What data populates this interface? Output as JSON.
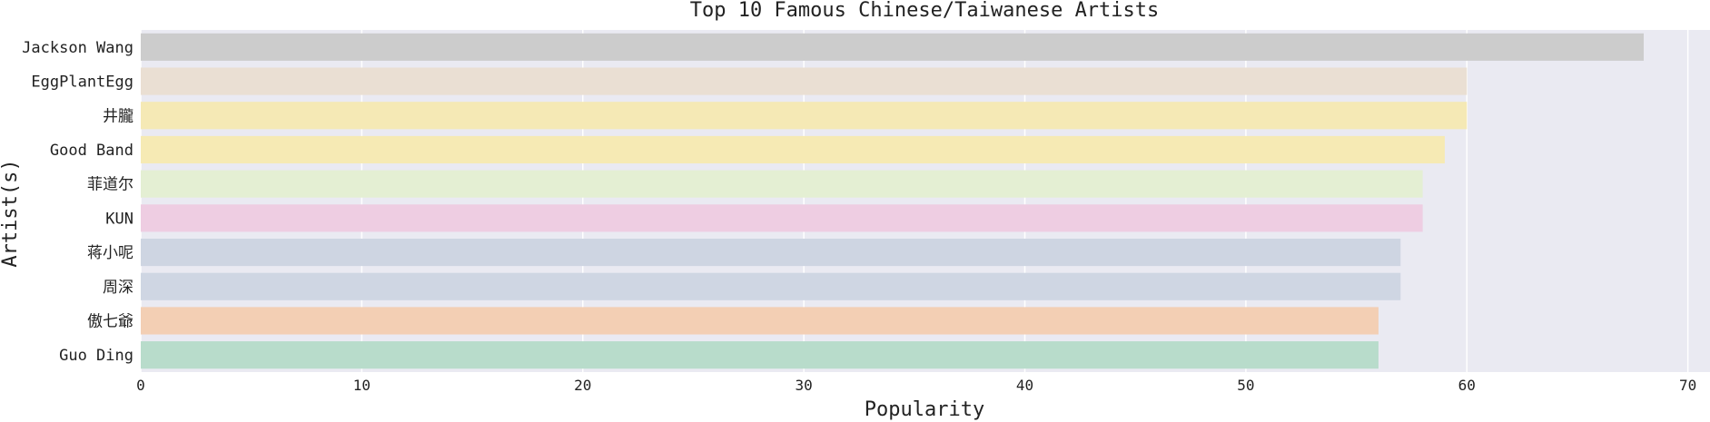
{
  "chart_data": {
    "type": "bar",
    "orientation": "horizontal",
    "title": "Top 10 Famous Chinese/Taiwanese Artists",
    "xlabel": "Popularity",
    "ylabel": "Artist(s)",
    "xlim": [
      0,
      71
    ],
    "xticks": [
      "0",
      "10",
      "20",
      "30",
      "40",
      "50",
      "60",
      "70"
    ],
    "grid": true,
    "categories": [
      "Jackson Wang",
      "EggPlantEgg",
      "井朧",
      "Good Band",
      "菲道尔",
      "KUN",
      "蒋小呢",
      "周深",
      "傲七爺",
      "Guo Ding"
    ],
    "values": [
      68,
      60,
      60,
      59,
      58,
      58,
      57,
      57,
      56,
      56
    ],
    "colors": [
      "#cccccc",
      "#eadfd3",
      "#f5e9b5",
      "#f6eab4",
      "#e4efd3",
      "#eecde2",
      "#ced5e2",
      "#cfd6e3",
      "#f3cfb4",
      "#b8dccb"
    ],
    "plot_background": "#eaeaf2",
    "grid_color": "#ffffff"
  }
}
